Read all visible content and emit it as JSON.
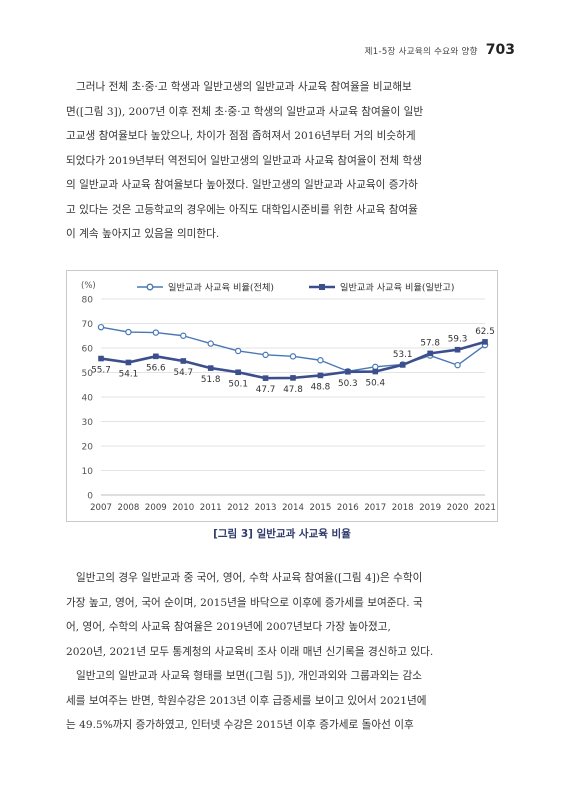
{
  "header": {
    "section": "제1-5장 사교육의 수요와 양향",
    "page_number": "703"
  },
  "paragraph1": [
    "그러나 전체 초·중·고 학생과 일반고생의 일반교과 사교육 참여율을 비교해보",
    "면([그림 3]), 2007년 이후 전체 초·중·고 학생의 일반교과 사교육 참여율이 일반",
    "고교생 참여율보다 높았으나, 차이가 점점 좁혀져서 2016년부터 거의 비슷하게",
    "되었다가 2019년부터 역전되어 일반고생의 일반교과 사교육 참여율이 전체 학생",
    "의 일반교과 사교육 참여율보다 높아졌다. 일반고생의 일반교과 사교육이 증가하",
    "고 있다는 것은 고등학교의 경우에는 아직도 대학입시준비를 위한 사교육 참여율",
    "이 계속 높아지고 있음을 의미한다."
  ],
  "figure_caption": "[그림 3] 일반교과 사교육 비율",
  "paragraph2": [
    "일반고의 경우 일반교과 중 국어, 영어, 수학 사교육 참여율([그림 4])은 수학이",
    "가장 높고, 영어, 국어 순이며, 2015년을 바닥으로 이후에 증가세를 보여준다. 국",
    "어, 영어, 수학의 사교육 참여율은 2019년에 2007년보다 가장 높아졌고,",
    "2020년, 2021년 모두 통계청의 사교육비 조사 이래 매년 신기록을 경신하고 있다.",
    "일반고의 일반교과 사교육 형태를 보면([그림 5]), 개인과외와 그룹과외는 감소",
    "세를 보여주는 반면, 학원수강은 2013년 이후 급증세를 보이고 있어서 2021년에",
    "는 49.5%까지 증가하였고, 인터넷 수강은 2015년 이후 증가세로 돌아선 이후"
  ],
  "chart_data": {
    "type": "line",
    "y_unit": "(%)",
    "ylim": [
      0,
      80
    ],
    "yticks": [
      0,
      10,
      20,
      30,
      40,
      50,
      60,
      70,
      80
    ],
    "grid": true,
    "legend_position": "top",
    "categories": [
      "2007",
      "2008",
      "2009",
      "2010",
      "2011",
      "2012",
      "2013",
      "2014",
      "2015",
      "2016",
      "2017",
      "2018",
      "2019",
      "2020",
      "2021"
    ],
    "series": [
      {
        "name": "일반교과 사교육 비율(전체)",
        "color": "#4a78b5",
        "marker": "circle",
        "values": [
          68.5,
          66.5,
          66.3,
          65.0,
          61.8,
          58.8,
          57.2,
          56.6,
          55.0,
          50.5,
          52.3,
          53.3,
          56.9,
          53.0,
          61.2
        ],
        "labels_shown": false
      },
      {
        "name": "일반교과 사교육 비율(일반고)",
        "color": "#3c4f8c",
        "marker": "square",
        "values": [
          55.7,
          54.1,
          56.6,
          54.7,
          51.8,
          50.1,
          47.7,
          47.8,
          48.8,
          50.3,
          50.4,
          53.1,
          57.8,
          59.3,
          62.5
        ],
        "labels_shown": true
      }
    ]
  }
}
